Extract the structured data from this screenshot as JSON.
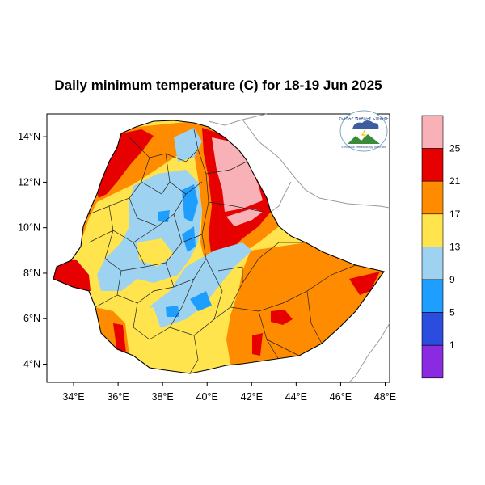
{
  "title": "Daily minimum temperature (C) for 18-19 Jun 2025",
  "map": {
    "region": "Ethiopia",
    "x_axis": {
      "ticks": [
        "34°E",
        "36°E",
        "38°E",
        "40°E",
        "42°E",
        "44°E",
        "46°E",
        "48°E"
      ],
      "lon": [
        34,
        36,
        38,
        40,
        42,
        44,
        46,
        48
      ],
      "range": [
        32.8,
        48.2
      ]
    },
    "y_axis": {
      "ticks": [
        "4°N",
        "6°N",
        "8°N",
        "10°N",
        "12°N",
        "14°N"
      ],
      "lat": [
        4,
        6,
        8,
        10,
        12,
        14
      ],
      "range": [
        3.2,
        15.0
      ]
    },
    "logo": {
      "text": "የኢትዮጵያ ሜቲዎሮሎጂ ኢንስቲትዩት",
      "subtext": "Ethiopian Meteorology Institute"
    }
  },
  "colorbar": {
    "labels": [
      "25",
      "21",
      "17",
      "13",
      "9",
      "5",
      "1"
    ],
    "bins": [
      {
        "range": ">25",
        "color": "#f9b1b8"
      },
      {
        "range": "21-25",
        "color": "#e60000"
      },
      {
        "range": "17-21",
        "color": "#ff8c00"
      },
      {
        "range": "13-17",
        "color": "#ffe44d"
      },
      {
        "range": "9-13",
        "color": "#9dd2f0"
      },
      {
        "range": "5-9",
        "color": "#1e9fff"
      },
      {
        "range": "1-5",
        "color": "#2a4de0"
      },
      {
        "range": "<1",
        "color": "#8a2be2"
      }
    ]
  }
}
